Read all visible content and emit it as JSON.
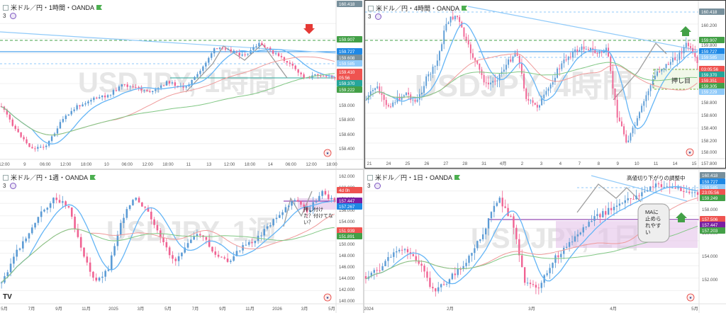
{
  "panels": [
    {
      "id": "1h",
      "header": {
        "title": "米ドル／円・1時間・OANDA"
      },
      "indicator_count": "3",
      "watermark": "USDJPY, 1時間",
      "price_axis": {
        "ticks": [
          "159.200",
          "159.000",
          "158.800",
          "158.600",
          "158.400"
        ],
        "labels": [
          {
            "text": "160.418",
            "color": "#78909c"
          },
          {
            "text": "159.907",
            "color": "#43a047"
          },
          {
            "text": "159.727",
            "color": "#1e88e5"
          },
          {
            "text": "159.608",
            "color": "#78909c"
          },
          {
            "text": "159.585",
            "color": "#90caf9"
          },
          {
            "text": "159.410",
            "color": "#ef5350"
          },
          {
            "text": "05:56",
            "color": "#ef5350"
          },
          {
            "text": "159.370",
            "color": "#26a69a"
          },
          {
            "text": "159.222",
            "color": "#43a047"
          }
        ]
      },
      "time_axis": [
        "12:00",
        "9",
        "06:00",
        "12:00",
        "18:00",
        "10",
        "06:00",
        "12:00",
        "18:00",
        "11",
        "13",
        "12:00",
        "18:00",
        "14",
        "06:00",
        "12:00",
        "18:00"
      ],
      "arrows": [
        {
          "dir": "down",
          "color": "#e53935"
        }
      ],
      "chart_data": {
        "type": "line",
        "title": "米ドル／円・1時間・OANDA",
        "x": [],
        "series": []
      }
    },
    {
      "id": "4h",
      "header": {
        "title": "米ドル／円・4時間・OANDA"
      },
      "indicator_count": "3",
      "watermark": "USDJPY, 4時間",
      "price_axis": {
        "ticks": [
          "160.400",
          "160.200",
          "159.800",
          "159.600",
          "159.400",
          "159.000",
          "158.800",
          "158.600",
          "158.400",
          "158.200",
          "158.000",
          "157.800"
        ],
        "labels": [
          {
            "text": "160.418",
            "color": "#78909c"
          },
          {
            "text": "159.907",
            "color": "#43a047"
          },
          {
            "text": "159.727",
            "color": "#1e88e5"
          },
          {
            "text": "159.585",
            "color": "#90caf9"
          },
          {
            "text": "03:05:56",
            "color": "#ef5350"
          },
          {
            "text": "159.370",
            "color": "#26a69a"
          },
          {
            "text": "159.351",
            "color": "#ef5350"
          },
          {
            "text": "159.305",
            "color": "#43a047"
          },
          {
            "text": "159.229",
            "color": "#90caf9"
          }
        ]
      },
      "time_axis": [
        "21",
        "24",
        "25",
        "26",
        "27",
        "28",
        "31",
        "4月",
        "2",
        "3",
        "4",
        "7",
        "8",
        "9",
        "10",
        "11",
        "14",
        "15"
      ],
      "arrows": [
        {
          "dir": "up",
          "color": "#43a047"
        }
      ],
      "annotation": "押し目",
      "chart_data": {
        "type": "line",
        "title": "米ドル／円・4時間・OANDA",
        "x": [],
        "series": []
      }
    },
    {
      "id": "1w",
      "header": {
        "title": "米ドル／円・1週・OANDA"
      },
      "indicator_count": "3",
      "watermark": "USDJPY, 1週",
      "price_axis": {
        "ticks": [
          "162.000",
          "160.000",
          "158.000",
          "156.000",
          "154.000",
          "152.000",
          "150.000",
          "148.000",
          "146.000",
          "144.000",
          "142.000",
          "140.000"
        ],
        "labels": [
          {
            "text": "4d 0h",
            "color": "#ef5350"
          },
          {
            "text": "157.447",
            "color": "#7b1fa2"
          },
          {
            "text": "157.267",
            "color": "#1e88e5"
          },
          {
            "text": "151.939",
            "color": "#ef5350"
          },
          {
            "text": "151.891",
            "color": "#43a047"
          }
        ]
      },
      "time_axis": [
        "5月",
        "7月",
        "9月",
        "11月",
        "2025",
        "3月",
        "5月",
        "7月",
        "9月",
        "11月",
        "2026",
        "3月",
        "5月"
      ],
      "annotation": "押し付け\nた？付けてな\nい？",
      "chart_data": {
        "type": "line",
        "title": "米ドル／円・1週・OANDA",
        "x": [],
        "series": []
      }
    },
    {
      "id": "1d",
      "header": {
        "title": "米ドル／円・1日・OANDA"
      },
      "indicator_count": "3",
      "watermark": "USDJPY, 1日",
      "price_axis": {
        "ticks": [
          "160.000",
          "158.000",
          "156.000",
          "154.000",
          "152.000"
        ],
        "labels": [
          {
            "text": "160.418",
            "color": "#78909c"
          },
          {
            "text": "159.727",
            "color": "#1e88e5"
          },
          {
            "text": "159.585",
            "color": "#90caf9"
          },
          {
            "text": "23:05:56",
            "color": "#ef5350"
          },
          {
            "text": "159.249",
            "color": "#43a047"
          },
          {
            "text": "157.506",
            "color": "#ef5350"
          },
          {
            "text": "157.447",
            "color": "#7b1fa2"
          },
          {
            "text": "157.203",
            "color": "#43a047"
          }
        ]
      },
      "time_axis": [
        "2024",
        "2月",
        "3月",
        "4月",
        "5月"
      ],
      "annotation_top": "高値切り下がりの調整中",
      "annotation": "MAに\n止めら\nれやす\nい",
      "arrows": [
        {
          "dir": "up",
          "color": "#43a047"
        }
      ],
      "chart_data": {
        "type": "line",
        "title": "米ドル／円・1日・OANDA",
        "x": [],
        "series": []
      }
    }
  ],
  "colors": {
    "up": "#5b9bd5",
    "down": "#f06292",
    "ma_short": "#64b5f6",
    "ma_mid": "#ef9a9a",
    "ma_long": "#81c784"
  }
}
